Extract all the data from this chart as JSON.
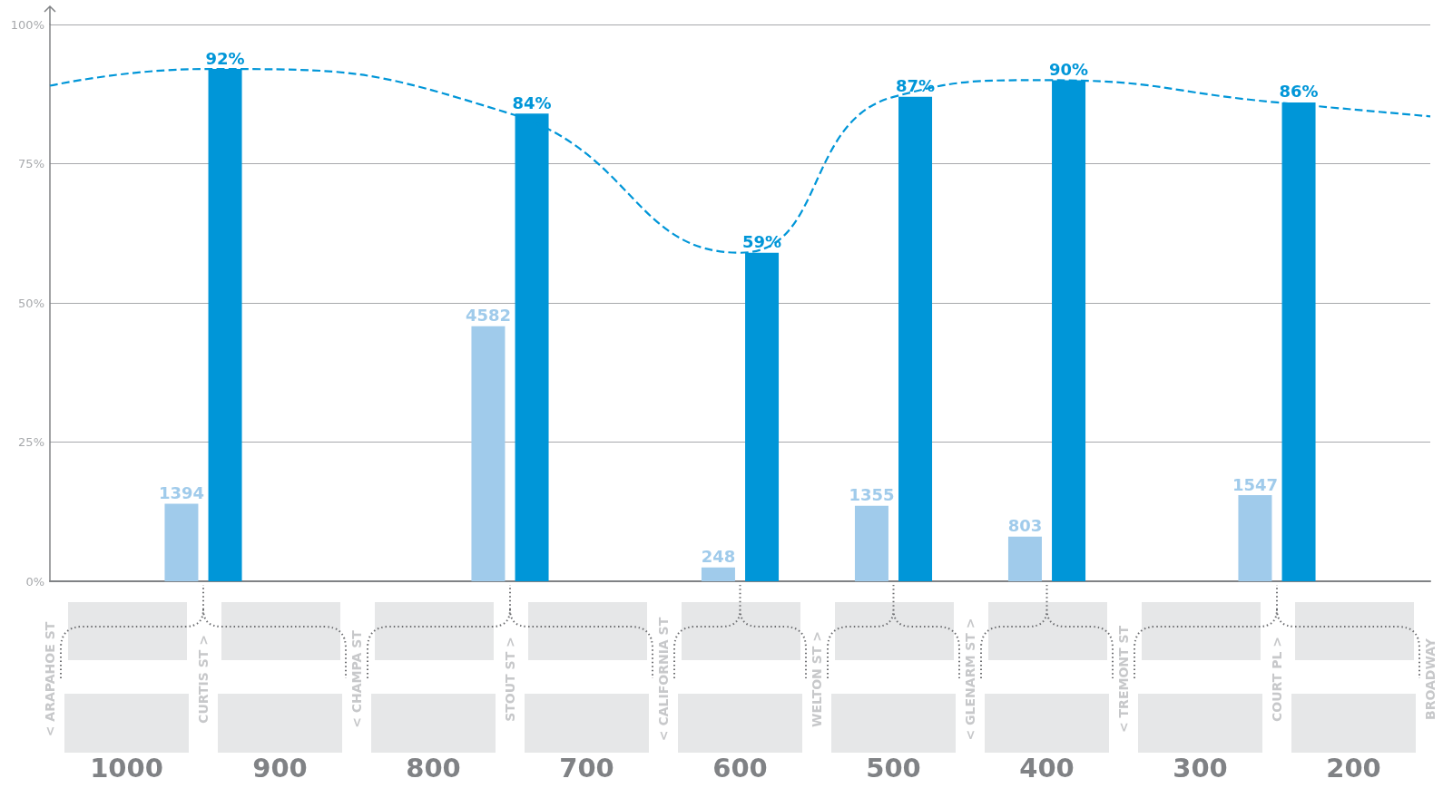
{
  "chart_data": {
    "type": "bar",
    "categories": [
      "< ARAPAHOE ST",
      null,
      "CURTIS ST >",
      null,
      "< CHAMPA ST",
      null,
      "STOUT ST >",
      null,
      "< CALIFORNIA ST",
      null,
      "WELTON ST >",
      null,
      "< GLENARM ST >",
      null,
      "< TREMONT ST",
      null,
      "COURT PL >",
      null,
      "BROADWAY"
    ],
    "annotations": [
      "1000",
      "900",
      "800",
      "700",
      "600",
      "500",
      "400",
      "300",
      "200"
    ],
    "series": [
      {
        "axis": "y2",
        "color": "#a0cbeb",
        "values": [
          null,
          null,
          1394,
          null,
          null,
          null,
          4582,
          null,
          null,
          248,
          null,
          1355,
          null,
          803,
          null,
          null,
          1547,
          null,
          null
        ],
        "data_labels": true
      },
      {
        "color": "#0096d8",
        "values": [
          null,
          null,
          92,
          null,
          null,
          null,
          84,
          null,
          null,
          59,
          null,
          87,
          null,
          90,
          null,
          null,
          86,
          null,
          null
        ],
        "value_labels": [
          null,
          null,
          "92%",
          null,
          null,
          null,
          "84%",
          null,
          null,
          "59%",
          null,
          "87%",
          null,
          "90%",
          null,
          null,
          "86%",
          null,
          null
        ]
      },
      {
        "type": "line",
        "color": "#0096d8",
        "line_style": "dashed",
        "marker": "none",
        "values": [
          89,
          null,
          92,
          null,
          null,
          null,
          84,
          null,
          null,
          59,
          null,
          87,
          null,
          90,
          null,
          null,
          86,
          null,
          83.5
        ]
      }
    ],
    "ylim": [
      0,
      100
    ],
    "yticks": [
      {
        "value": 0,
        "label": "0%"
      },
      {
        "value": 25,
        "label": "25%"
      },
      {
        "value": 50,
        "label": "50%"
      },
      {
        "value": 75,
        "label": "75%"
      },
      {
        "value": 100,
        "label": "100%"
      }
    ],
    "y2lim": [
      0,
      10000
    ],
    "grid": "y"
  }
}
